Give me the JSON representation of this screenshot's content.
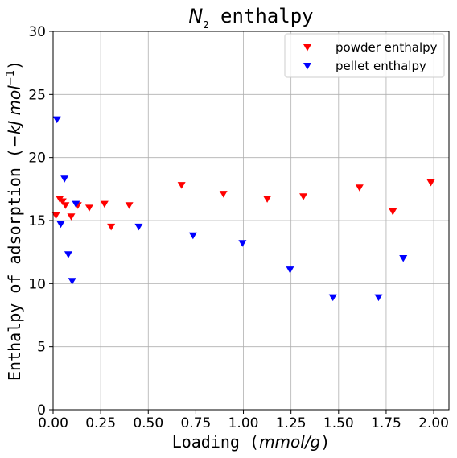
{
  "chart_data": {
    "type": "scatter",
    "title": "N₂ enthalpy",
    "title_parts": {
      "symbol": "N",
      "subscript": "2",
      "rest": " enthalpy"
    },
    "xlabel": "Loading (mmol/g)",
    "xlabel_parts": {
      "text": "Loading (",
      "unit": "mmol/g",
      "close": ")"
    },
    "ylabel": "Enthalpy of adsorption (−kJ mol⁻¹)",
    "ylabel_parts": {
      "text": "Enthalpy of adsorption (",
      "unit": "−kJ mol",
      "sup": "−1",
      "close": ")"
    },
    "xlim": [
      0,
      2.08
    ],
    "ylim": [
      0,
      30
    ],
    "xticks": [
      0,
      0.25,
      0.5,
      0.75,
      1.0,
      1.25,
      1.5,
      1.75,
      2.0
    ],
    "xtick_labels": [
      "0.00",
      "0.25",
      "0.50",
      "0.75",
      "1.00",
      "1.25",
      "1.50",
      "1.75",
      "2.00"
    ],
    "yticks": [
      0,
      5,
      10,
      15,
      20,
      25,
      30
    ],
    "ytick_labels": [
      "0",
      "5",
      "10",
      "15",
      "20",
      "25",
      "30"
    ],
    "grid": true,
    "legend_position": "top-right",
    "marker": "down-triangle",
    "series": [
      {
        "name": "powder enthalpy",
        "color": "#ff0000",
        "x": [
          0.015,
          0.035,
          0.05,
          0.065,
          0.095,
          0.13,
          0.19,
          0.27,
          0.305,
          0.4,
          0.675,
          0.895,
          1.125,
          1.315,
          1.61,
          1.785,
          1.985
        ],
        "y": [
          15.4,
          16.7,
          16.5,
          16.2,
          15.3,
          16.2,
          16.0,
          16.3,
          14.5,
          16.2,
          17.8,
          17.1,
          16.7,
          16.9,
          17.6,
          15.7,
          18.0
        ]
      },
      {
        "name": "pellet enthalpy",
        "color": "#0000ff",
        "x": [
          0.02,
          0.04,
          0.06,
          0.08,
          0.1,
          0.12,
          0.45,
          0.735,
          0.995,
          1.245,
          1.47,
          1.71,
          1.84
        ],
        "y": [
          23.0,
          14.7,
          18.3,
          12.3,
          10.2,
          16.3,
          14.5,
          13.8,
          13.2,
          11.1,
          8.9,
          8.9,
          12.0
        ]
      }
    ]
  }
}
